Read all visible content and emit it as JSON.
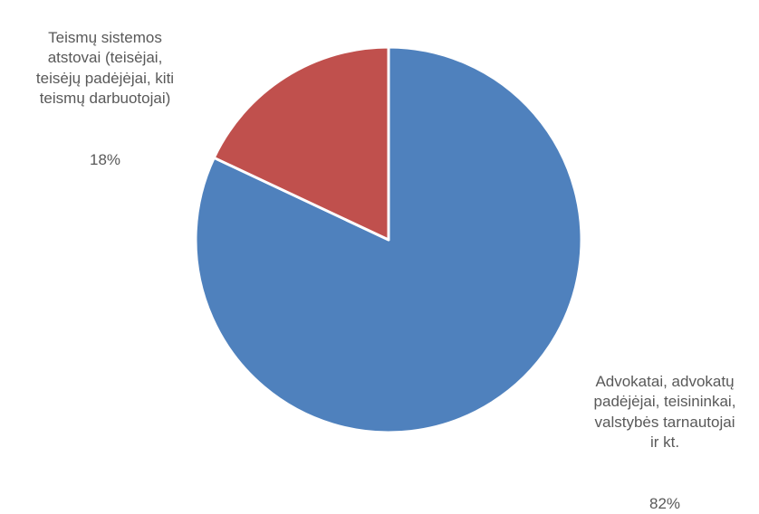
{
  "chart_data": {
    "type": "pie",
    "slices": [
      {
        "label": "Advokatai, advokatų padėjėjai, teisininkai, valstybės tarnautojai ir kt.",
        "label_lines": "Advokatai, advokatų\npadėjėjai, teisininkai,\nvalstybės tarnautojai\nir kt.",
        "value": 82,
        "display_value": "82%",
        "color": "#4F81BD"
      },
      {
        "label": "Teismų sistemos atstovai (teisėjai, teisėjų padėjėjai, kiti teismų darbuotojai)",
        "label_lines": "Teismų sistemos\natstovai (teisėjai,\nteisėjų padėjėjai, kiti\nteismų darbuotojai)",
        "value": 18,
        "display_value": "18%",
        "color": "#C0504D"
      }
    ],
    "legend": false
  }
}
